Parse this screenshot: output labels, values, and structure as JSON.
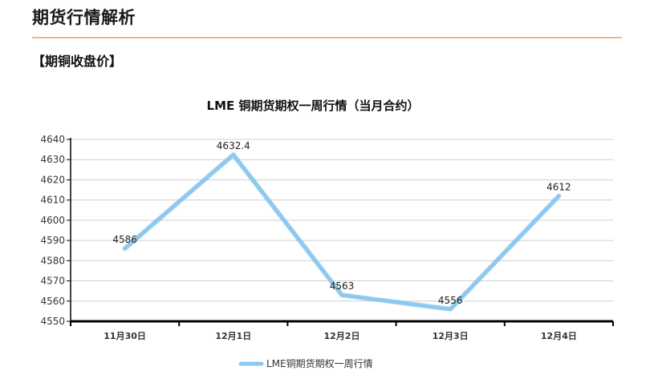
{
  "page": {
    "title": "期货行情解析",
    "section_heading": "【期铜收盘价】"
  },
  "colors": {
    "title_rule": "#f5b183",
    "series_line": "#8cc8f0",
    "grid": "#cfcfcf",
    "axis": "#000000"
  },
  "chart_data": {
    "type": "line",
    "title": "LME 铜期货期权一周行情（当月合约）",
    "categories": [
      "11月30日",
      "12月1日",
      "12月2日",
      "12月3日",
      "12月4日"
    ],
    "series": [
      {
        "name": "LME铜期货期权一周行情",
        "values": [
          4586,
          4632.4,
          4563,
          4556,
          4612
        ],
        "labels": [
          "4586",
          "4632.4",
          "4563",
          "4556",
          "4612"
        ]
      }
    ],
    "ylim": [
      4550,
      4640
    ],
    "yticks": [
      4550,
      4560,
      4570,
      4580,
      4590,
      4600,
      4610,
      4620,
      4630,
      4640
    ],
    "xlabel": "",
    "ylabel": "",
    "grid": true,
    "legend_position": "bottom"
  }
}
